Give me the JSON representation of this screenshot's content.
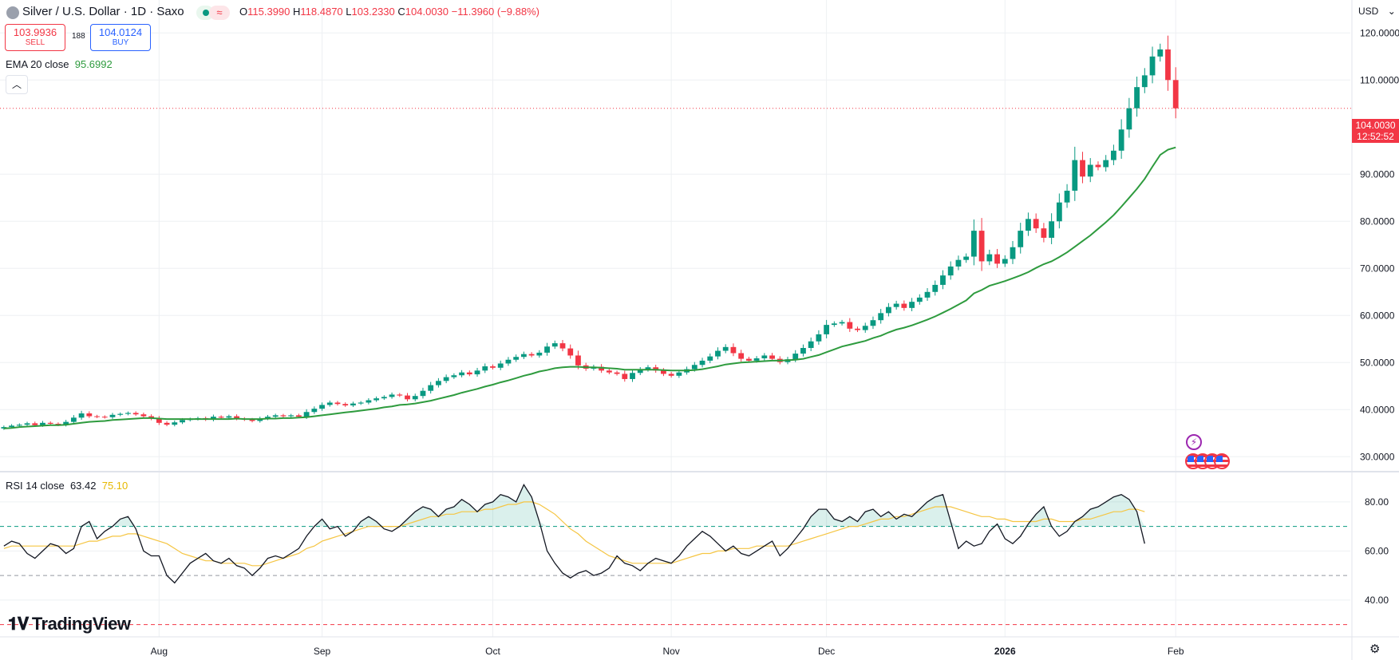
{
  "header": {
    "title": "Silver / U.S. Dollar · 1D · Saxo",
    "ohlc": {
      "o_label": "O",
      "o": "115.3990",
      "h_label": "H",
      "h": "118.4870",
      "l_label": "L",
      "l": "103.2330",
      "c_label": "C",
      "c": "104.0030",
      "change": "−11.3960 (−9.88%)"
    }
  },
  "trade": {
    "sell_price": "103.9936",
    "sell_label": "SELL",
    "spread": "188",
    "buy_price": "104.0124",
    "buy_label": "BUY"
  },
  "indicators": {
    "ema_label": "EMA 20 close",
    "ema_value": "95.6992",
    "rsi_label": "RSI 14 close",
    "rsi_value": "63.42",
    "rsi_ma_value": "75.10"
  },
  "price_axis": {
    "currency": "USD",
    "last_price": "104.0030",
    "countdown": "12:52:52"
  },
  "branding": {
    "logo_text": "TradingView"
  },
  "colors": {
    "up": "#089981",
    "down": "#f23645",
    "ema": "#2e9b3e",
    "rsi": "#131722",
    "rsi_ma": "#f5c542",
    "grid": "#eef0f3"
  },
  "chart_data": [
    {
      "type": "candlestick",
      "title": "Silver / U.S. Dollar · 1D · Saxo",
      "ylim": [
        27,
        127
      ],
      "yticks": [
        30,
        40,
        50,
        60,
        70,
        80,
        90,
        110,
        120
      ],
      "ytick_labels": [
        "30.0000",
        "40.0000",
        "50.0000",
        "60.0000",
        "70.0000",
        "80.0000",
        "90.0000",
        "110.0000",
        "120.0000"
      ],
      "xtick_labels": [
        "Aug",
        "Sep",
        "Oct",
        "Nov",
        "Dec",
        "2026",
        "Feb"
      ],
      "xtick_index": [
        20,
        41,
        63,
        86,
        106,
        129,
        151
      ],
      "num_slots": 174,
      "closes": [
        36.3,
        36.6,
        36.8,
        37.1,
        36.7,
        37.2,
        37.0,
        36.8,
        37.4,
        38.3,
        39.2,
        38.6,
        38.5,
        38.4,
        38.9,
        39.1,
        39.3,
        39.0,
        38.6,
        38.1,
        37.2,
        36.8,
        37.3,
        37.8,
        38.0,
        38.2,
        37.9,
        38.5,
        38.3,
        38.6,
        38.1,
        37.9,
        37.6,
        38.1,
        38.5,
        38.8,
        38.6,
        38.8,
        38.5,
        39.5,
        40.2,
        41.0,
        41.5,
        41.2,
        40.9,
        41.3,
        41.5,
        42.0,
        42.4,
        42.7,
        43.2,
        43.0,
        42.2,
        42.9,
        44.0,
        45.2,
        46.1,
        46.9,
        47.3,
        47.9,
        47.5,
        48.3,
        49.2,
        48.9,
        49.8,
        50.6,
        51.2,
        51.8,
        51.5,
        52.1,
        53.4,
        54.1,
        53.0,
        51.5,
        49.4,
        48.7,
        49.1,
        48.3,
        47.9,
        47.6,
        46.5,
        47.8,
        48.5,
        49.0,
        48.3,
        47.6,
        47.2,
        47.9,
        48.6,
        49.5,
        50.4,
        51.3,
        52.5,
        53.3,
        52.0,
        50.8,
        50.4,
        50.9,
        51.5,
        50.8,
        50.1,
        50.7,
        51.9,
        53.1,
        54.5,
        56.0,
        58.0,
        58.3,
        58.6,
        57.2,
        56.9,
        57.8,
        59.0,
        60.5,
        61.8,
        62.5,
        61.6,
        62.9,
        63.8,
        65.0,
        66.5,
        68.5,
        70.4,
        71.8,
        72.5,
        78.0,
        71.5,
        73.0,
        71.0,
        72.0,
        74.5,
        78.0,
        80.5,
        78.5,
        76.5,
        80.0,
        84.0,
        86.5,
        93.0,
        89.5,
        92.0,
        91.5,
        93.0,
        95.0,
        99.5,
        104.0,
        108.5,
        111.0,
        115.0,
        116.5,
        110.0,
        104.0
      ],
      "ema20": [
        36.0,
        36.1,
        36.3,
        36.4,
        36.5,
        36.6,
        36.7,
        36.7,
        36.8,
        37.0,
        37.2,
        37.4,
        37.5,
        37.6,
        37.8,
        37.9,
        38.0,
        38.1,
        38.2,
        38.2,
        38.1,
        38.0,
        38.0,
        38.0,
        38.0,
        38.0,
        38.0,
        38.0,
        38.0,
        38.0,
        38.1,
        38.0,
        38.0,
        38.0,
        38.1,
        38.1,
        38.2,
        38.2,
        38.3,
        38.4,
        38.6,
        38.8,
        39.0,
        39.2,
        39.4,
        39.6,
        39.8,
        40.0,
        40.2,
        40.5,
        40.7,
        41.0,
        41.1,
        41.3,
        41.6,
        41.9,
        42.3,
        42.7,
        43.1,
        43.6,
        44.0,
        44.4,
        44.9,
        45.3,
        45.8,
        46.2,
        46.7,
        47.2,
        47.6,
        48.1,
        48.4,
        48.8,
        49.0,
        49.1,
        49.1,
        49.0,
        49.0,
        48.9,
        48.8,
        48.7,
        48.5,
        48.5,
        48.5,
        48.5,
        48.5,
        48.4,
        48.3,
        48.3,
        48.3,
        48.4,
        48.6,
        48.9,
        49.2,
        49.6,
        49.8,
        50.0,
        50.1,
        50.2,
        50.3,
        50.4,
        50.4,
        50.5,
        50.6,
        50.8,
        51.2,
        51.6,
        52.2,
        52.8,
        53.4,
        53.8,
        54.2,
        54.6,
        55.2,
        55.7,
        56.4,
        57.0,
        57.4,
        57.9,
        58.5,
        59.1,
        59.8,
        60.6,
        61.4,
        62.3,
        63.2,
        64.7,
        65.4,
        66.3,
        66.8,
        67.3,
        67.9,
        68.5,
        69.2,
        70.1,
        70.9,
        71.5,
        72.4,
        73.4,
        74.6,
        75.8,
        77.0,
        78.4,
        79.8,
        81.3,
        83.1,
        85.0,
        86.9,
        89.0,
        91.6,
        94.1,
        95.2,
        95.7
      ]
    },
    {
      "type": "line",
      "title": "RSI 14 close",
      "ylim": [
        25,
        92
      ],
      "yticks": [
        40,
        60,
        80
      ],
      "ytick_labels": [
        "40.00",
        "60.00",
        "80.00"
      ],
      "levels": [
        70,
        50,
        30
      ],
      "series": [
        {
          "name": "RSI 14 close",
          "values": [
            62,
            64,
            63,
            59,
            57,
            60,
            63,
            62,
            59,
            61,
            70,
            72,
            65,
            68,
            70,
            73,
            74,
            69,
            60,
            58,
            58,
            50,
            47,
            51,
            55,
            57,
            59,
            56,
            55,
            57,
            54,
            53,
            50,
            53,
            57,
            58,
            57,
            59,
            61,
            66,
            70,
            73,
            69,
            70,
            66,
            68,
            72,
            74,
            72,
            69,
            68,
            70,
            73,
            76,
            78,
            77,
            74,
            77,
            78,
            81,
            79,
            76,
            79,
            80,
            83,
            82,
            80,
            87,
            82,
            72,
            60,
            55,
            51,
            49,
            51,
            52,
            50,
            51,
            53,
            58,
            55,
            54,
            52,
            55,
            57,
            56,
            55,
            58,
            62,
            65,
            68,
            66,
            63,
            60,
            62,
            59,
            58,
            60,
            62,
            64,
            58,
            61,
            65,
            69,
            74,
            77,
            77,
            73,
            72,
            74,
            72,
            76,
            77,
            74,
            76,
            73,
            75,
            74,
            77,
            80,
            82,
            83,
            72,
            61,
            64,
            62,
            63,
            68,
            71,
            65,
            63,
            66,
            71,
            75,
            78,
            70,
            66,
            68,
            72,
            74,
            77,
            78,
            80,
            82,
            83,
            81,
            76,
            63
          ],
          "start_index": 0
        },
        {
          "name": "RSI MA",
          "values": [
            61,
            62,
            62,
            62,
            62,
            62,
            62,
            62,
            62,
            62,
            63,
            64,
            64,
            65,
            66,
            66,
            67,
            67,
            66,
            65,
            64,
            63,
            61,
            59,
            58,
            57,
            56,
            56,
            55,
            55,
            55,
            55,
            54,
            54,
            55,
            56,
            57,
            58,
            59,
            61,
            62,
            64,
            65,
            66,
            67,
            68,
            69,
            70,
            70,
            70,
            70,
            70,
            71,
            72,
            73,
            74,
            74,
            75,
            75,
            76,
            76,
            76,
            77,
            77,
            78,
            79,
            79,
            80,
            80,
            79,
            77,
            75,
            72,
            69,
            67,
            64,
            62,
            60,
            58,
            57,
            56,
            55,
            55,
            55,
            55,
            55,
            55,
            56,
            57,
            58,
            59,
            59,
            60,
            60,
            61,
            61,
            61,
            62,
            62,
            62,
            62,
            62,
            63,
            64,
            65,
            66,
            67,
            68,
            69,
            70,
            70,
            71,
            72,
            73,
            73,
            74,
            74,
            75,
            76,
            77,
            78,
            78,
            78,
            77,
            76,
            75,
            74,
            74,
            73,
            73,
            72,
            72,
            72,
            72,
            73,
            73,
            72,
            72,
            72,
            73,
            73,
            74,
            75,
            76,
            76,
            77,
            77,
            76
          ],
          "start_index": 0
        }
      ]
    }
  ]
}
